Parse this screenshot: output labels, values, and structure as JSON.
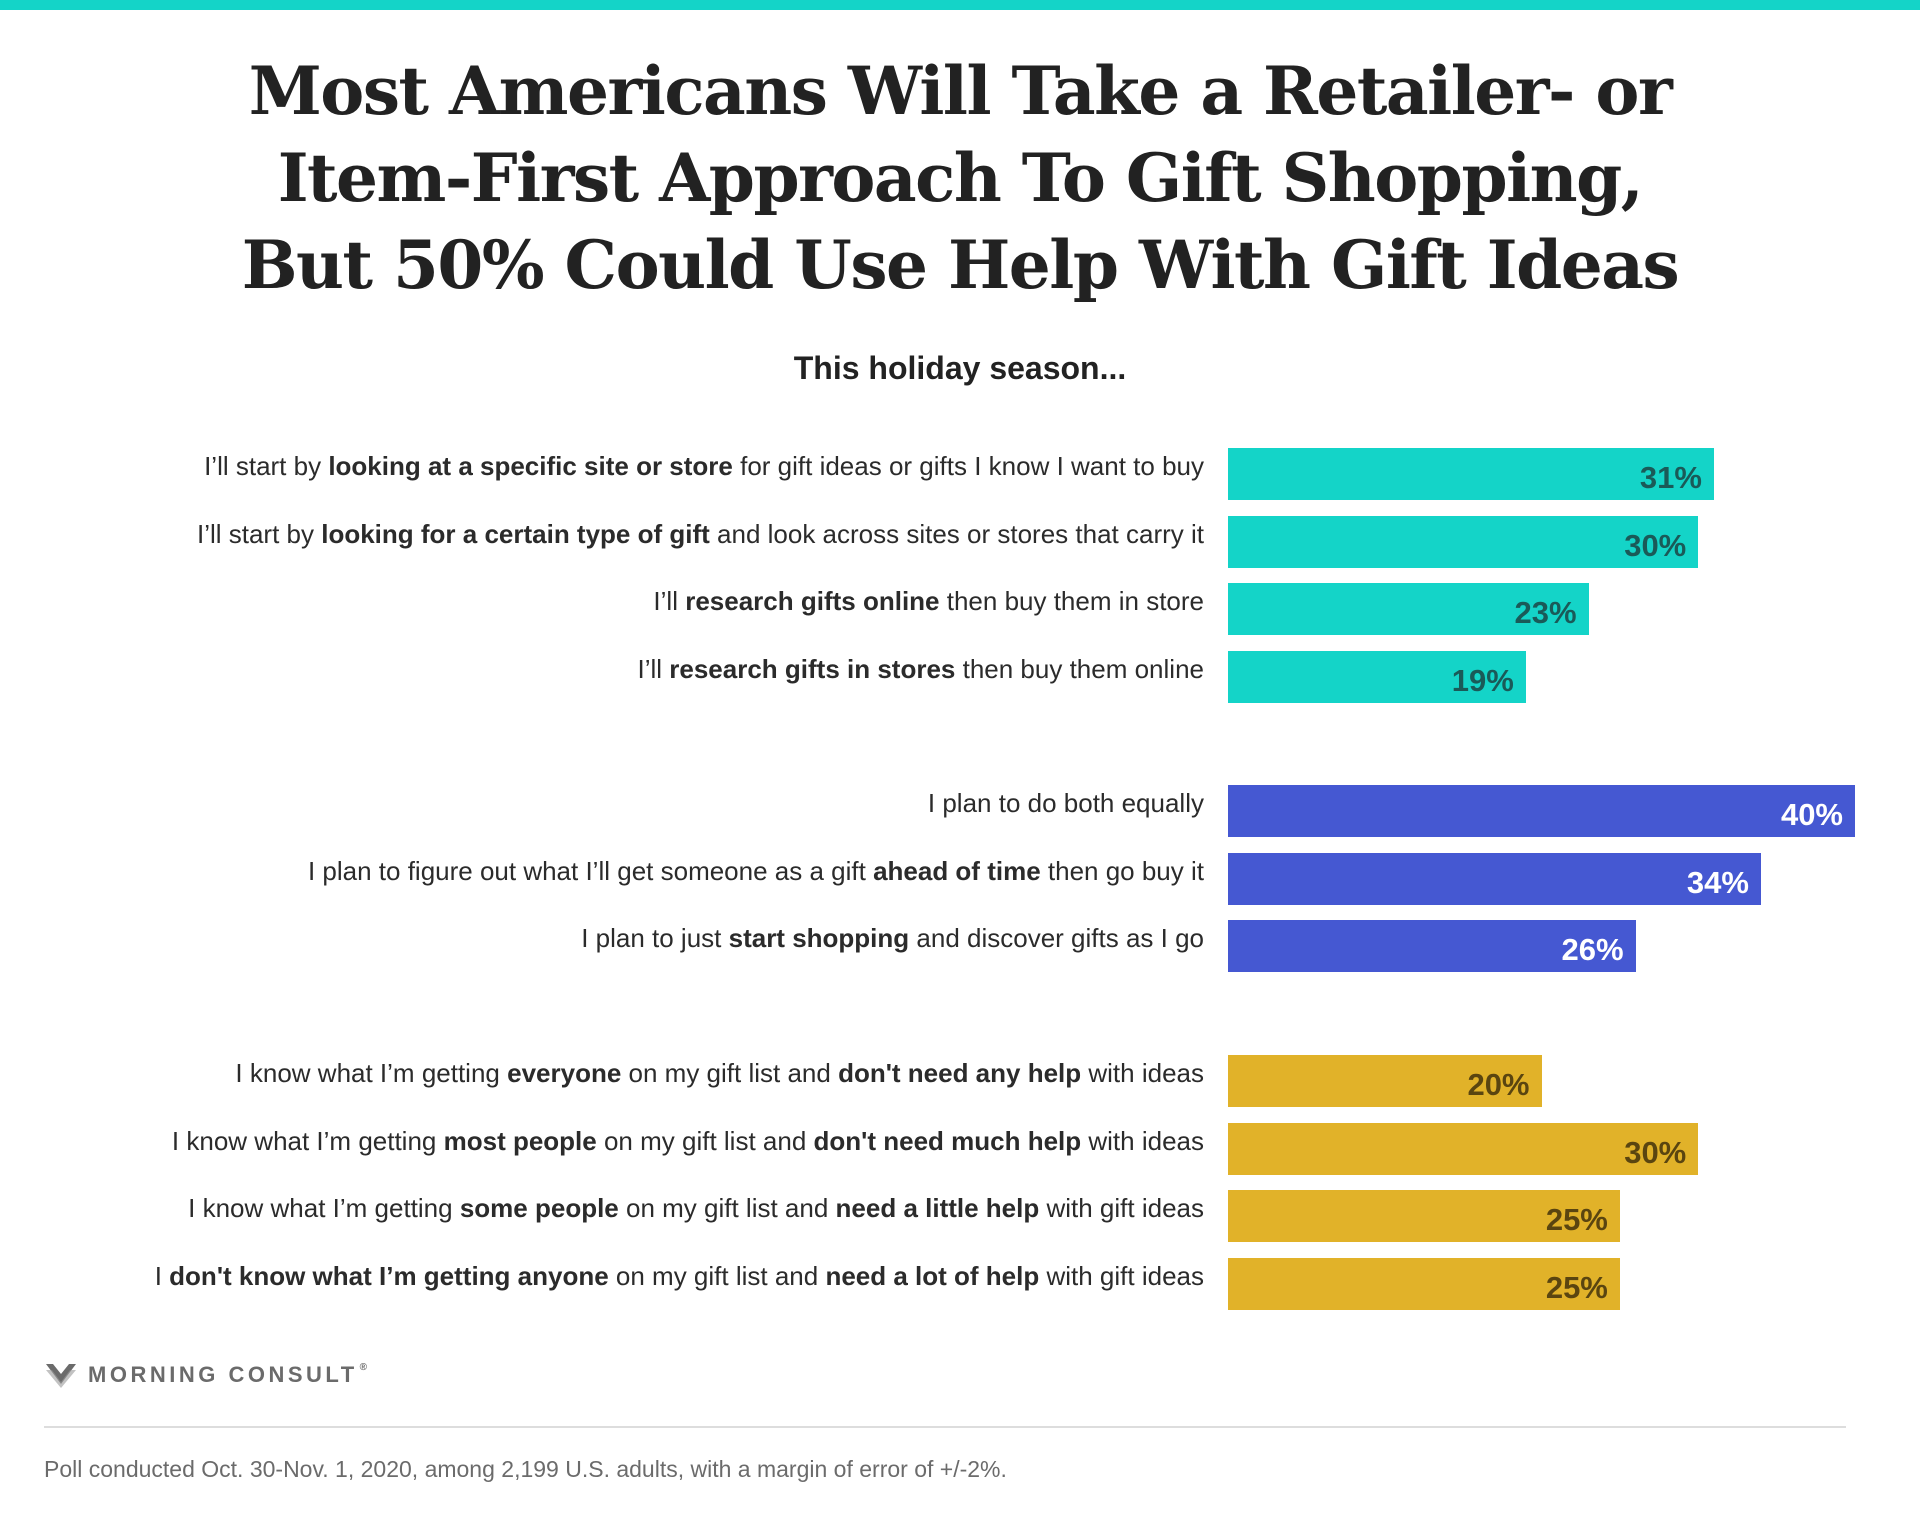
{
  "title_lines": [
    "Most Americans Will Take a Retailer- or",
    "Item-First Approach To Gift Shopping,",
    "But 50% Could Use Help With Gift Ideas"
  ],
  "subtitle": "This holiday season...",
  "colors": {
    "teal": "#14d4c8",
    "blue": "#4558d2",
    "gold": "#e1b229",
    "teal_label": "#1a5a58",
    "gold_label": "#5a4510",
    "blue_label": "#ffffff"
  },
  "chart_data": {
    "type": "bar",
    "orientation": "horizontal",
    "title": "Most Americans Will Take a Retailer- or Item-First Approach To Gift Shopping, But 50% Could Use Help With Gift Ideas",
    "subtitle": "This holiday season...",
    "xlim": [
      0,
      40
    ],
    "unit": "%",
    "groups": [
      {
        "color": "teal",
        "rows": [
          {
            "label": [
              {
                "t": "I’ll start by "
              },
              {
                "t": "looking at a specific site or store",
                "b": true
              },
              {
                "t": " for gift ideas or gifts I know I want to buy"
              }
            ],
            "value": 31,
            "value_label": "31%"
          },
          {
            "label": [
              {
                "t": "I’ll start by "
              },
              {
                "t": "looking for a certain type of gift",
                "b": true
              },
              {
                "t": " and look across sites or stores that carry it"
              }
            ],
            "value": 30,
            "value_label": "30%"
          },
          {
            "label": [
              {
                "t": "I’ll "
              },
              {
                "t": "research gifts online",
                "b": true
              },
              {
                "t": " then buy them in store"
              }
            ],
            "value": 23,
            "value_label": "23%"
          },
          {
            "label": [
              {
                "t": "I’ll "
              },
              {
                "t": "research gifts in stores",
                "b": true
              },
              {
                "t": " then buy them online"
              }
            ],
            "value": 19,
            "value_label": "19%"
          }
        ]
      },
      {
        "color": "blue",
        "rows": [
          {
            "label": [
              {
                "t": "I plan to do both equally"
              }
            ],
            "value": 40,
            "value_label": "40%"
          },
          {
            "label": [
              {
                "t": "I plan to figure out what I’ll get someone as a gift "
              },
              {
                "t": "ahead of time",
                "b": true
              },
              {
                "t": " then go buy it"
              }
            ],
            "value": 34,
            "value_label": "34%"
          },
          {
            "label": [
              {
                "t": "I plan to just "
              },
              {
                "t": "start shopping",
                "b": true
              },
              {
                "t": " and discover gifts as I go"
              }
            ],
            "value": 26,
            "value_label": "26%"
          }
        ]
      },
      {
        "color": "gold",
        "rows": [
          {
            "label": [
              {
                "t": "I know what I’m getting "
              },
              {
                "t": "everyone",
                "b": true
              },
              {
                "t": " on my gift list and "
              },
              {
                "t": "don't need any help",
                "b": true
              },
              {
                "t": " with ideas"
              }
            ],
            "value": 20,
            "value_label": "20%"
          },
          {
            "label": [
              {
                "t": "I know what I’m getting "
              },
              {
                "t": "most people",
                "b": true
              },
              {
                "t": " on my gift list and "
              },
              {
                "t": "don't need much help",
                "b": true
              },
              {
                "t": " with ideas"
              }
            ],
            "value": 30,
            "value_label": "30%"
          },
          {
            "label": [
              {
                "t": "I know what I’m getting "
              },
              {
                "t": "some people",
                "b": true
              },
              {
                "t": " on my gift list and "
              },
              {
                "t": "need a little help",
                "b": true
              },
              {
                "t": " with gift ideas"
              }
            ],
            "value": 25,
            "value_label": "25%"
          },
          {
            "label": [
              {
                "t": "I "
              },
              {
                "t": "don't know what I’m getting anyone",
                "b": true
              },
              {
                "t": " on my gift list and "
              },
              {
                "t": "need a lot of help",
                "b": true
              },
              {
                "t": " with gift ideas"
              }
            ],
            "value": 25,
            "value_label": "25%"
          }
        ]
      }
    ]
  },
  "footer": {
    "logo_icon": "morning-consult-m-icon",
    "logo_text": "MORNING CONSULT",
    "logo_tm": "®",
    "note": "Poll conducted Oct. 30-Nov. 1, 2020, among 2,199 U.S. adults, with a margin of error of +/-2%."
  }
}
